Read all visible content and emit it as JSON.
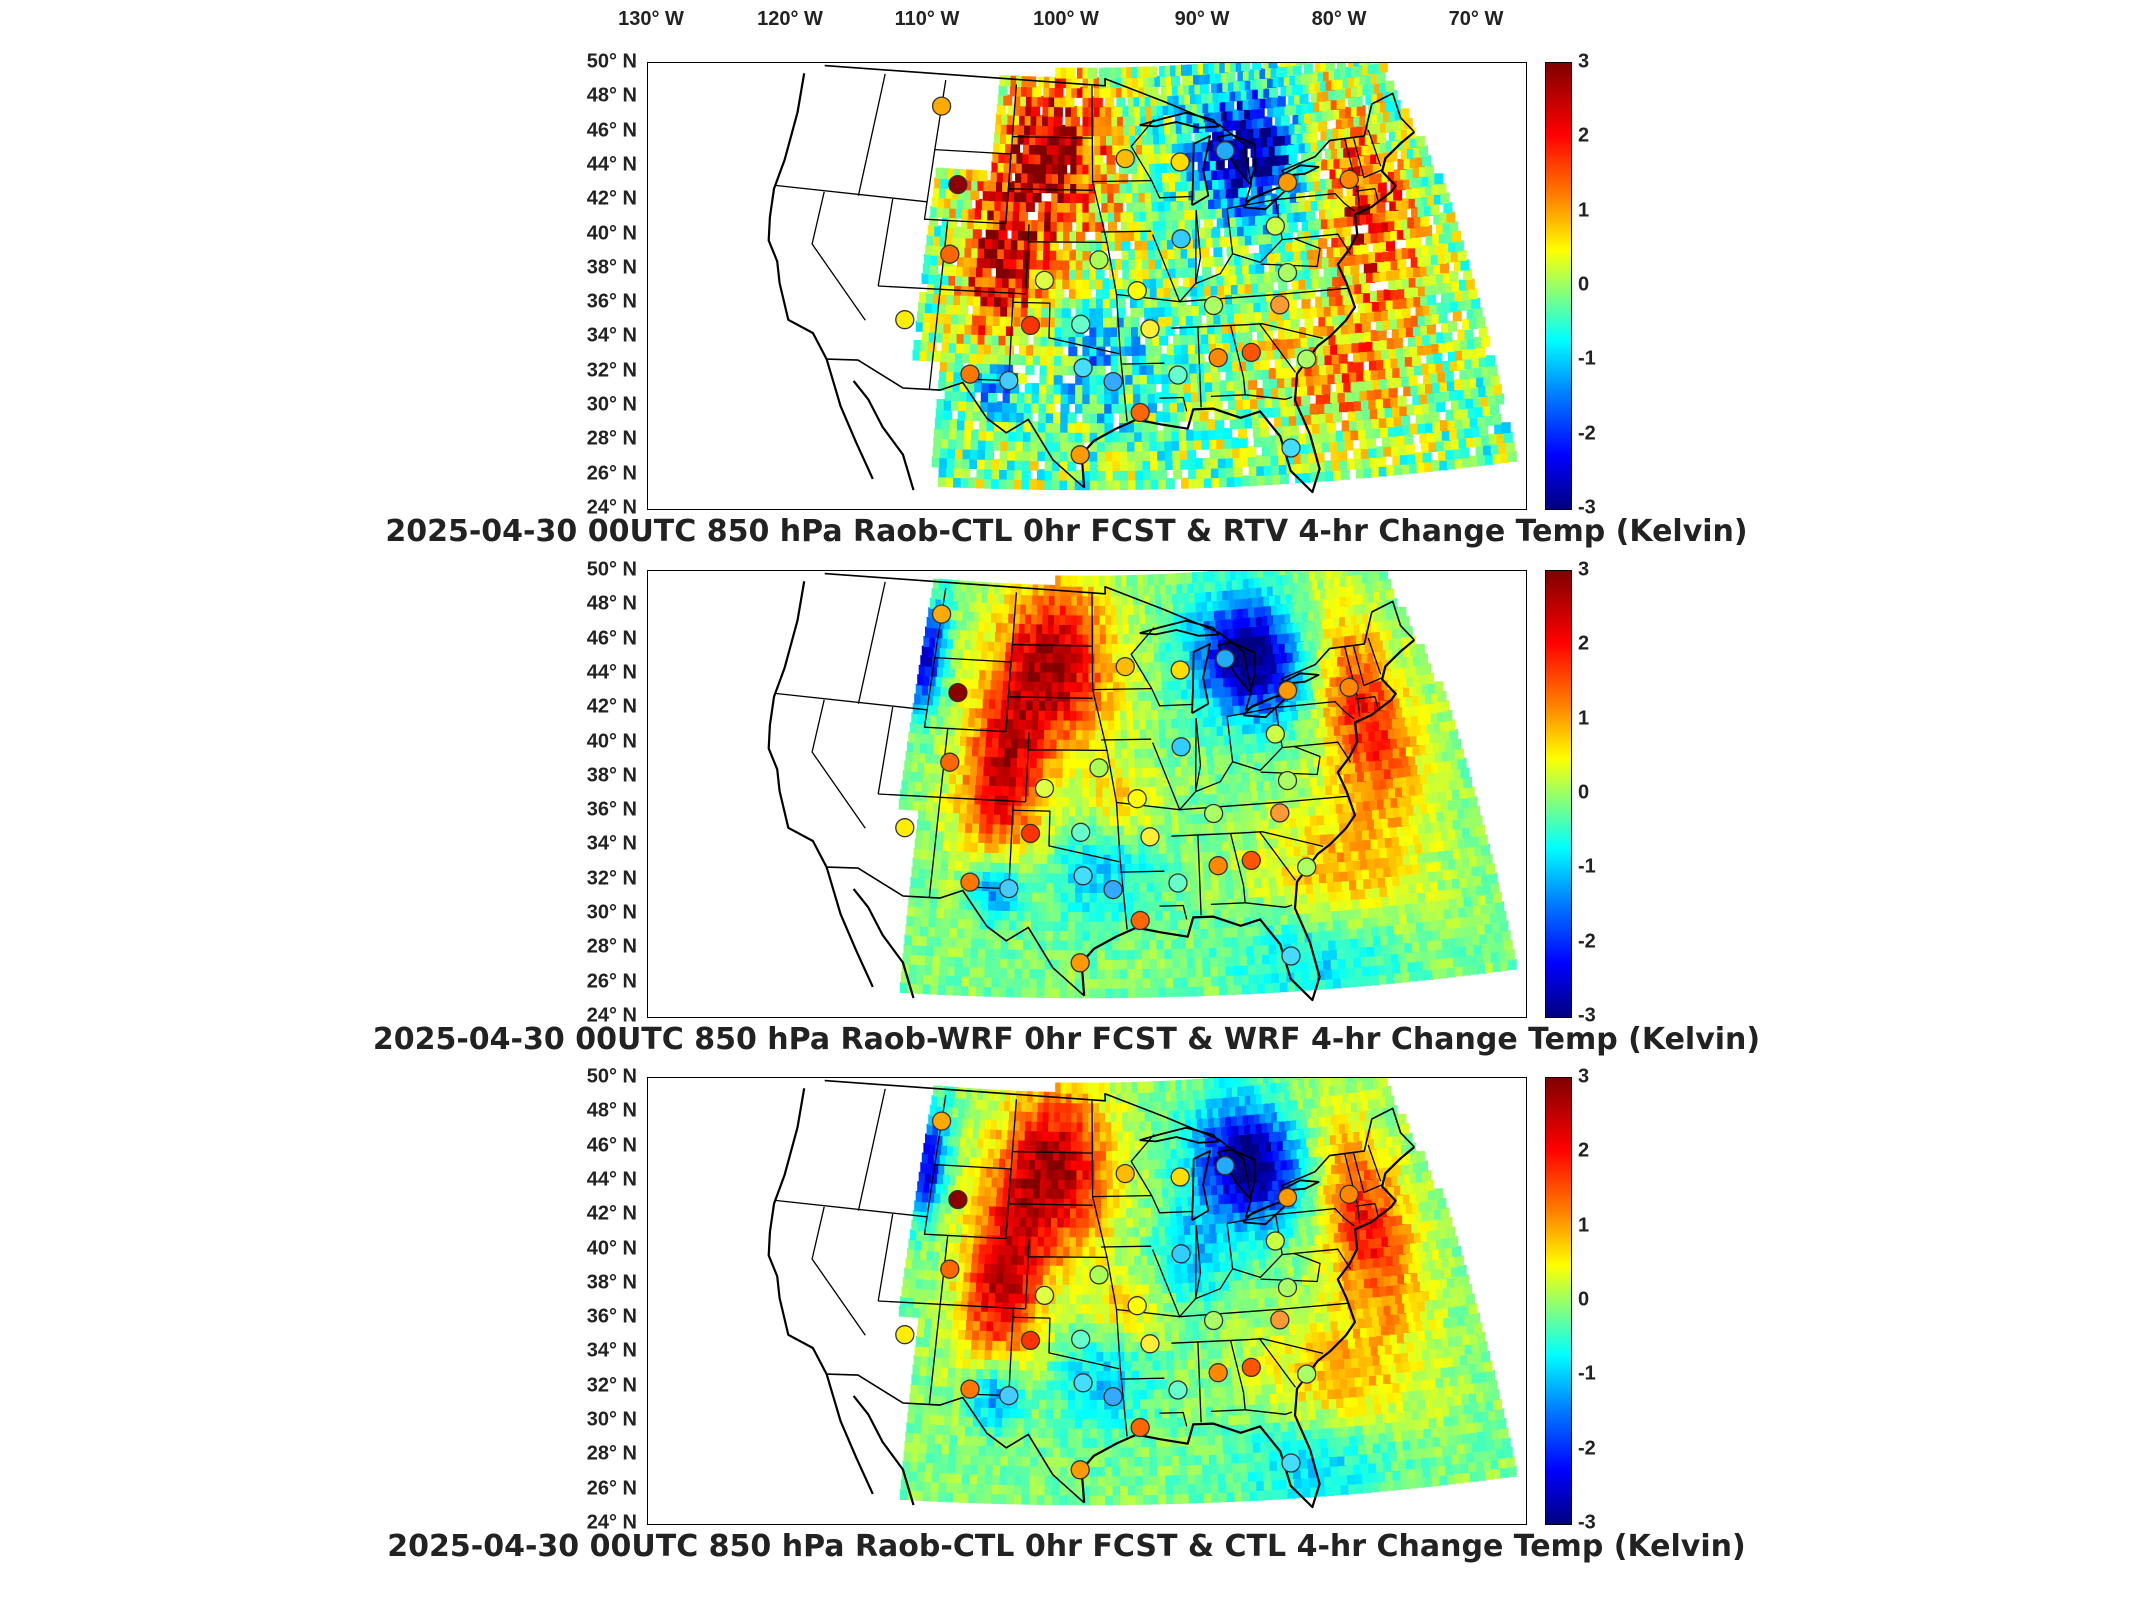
{
  "lon_labels": [
    "130° W",
    "120° W",
    "110° W",
    "100° W",
    "90° W",
    "80° W",
    "70° W"
  ],
  "lat_labels": [
    "50° N",
    "48° N",
    "46° N",
    "44° N",
    "42° N",
    "40° N",
    "38° N",
    "36° N",
    "34° N",
    "32° N",
    "30° N",
    "28° N",
    "26° N",
    "24° N"
  ],
  "colorbar_ticks": [
    "3",
    "2",
    "1",
    "0",
    "-1",
    "-2",
    "-3"
  ],
  "colormap": [
    "#800000",
    "#ff0000",
    "#ff8000",
    "#ffff00",
    "#80ff80",
    "#00ffff",
    "#0080ff",
    "#0000ff",
    "#000080"
  ],
  "panels": [
    {
      "title": "2025-04-30 00UTC 850 hPa Raob-CTL 0hr FCST & RTV 4-hr Change Temp (Kelvin)",
      "variant": "rtv"
    },
    {
      "title": "2025-04-30 00UTC 850 hPa Raob-WRF 0hr FCST & WRF 4-hr Change Temp (Kelvin)",
      "variant": "wrf"
    },
    {
      "title": "2025-04-30 00UTC 850 hPa Raob-CTL 0hr FCST & CTL 4-hr Change Temp (Kelvin)",
      "variant": "ctl"
    }
  ],
  "raob_stations": [
    {
      "lon": -111.0,
      "lat": 47.5,
      "color": "#ffaa00"
    },
    {
      "lon": -108.5,
      "lat": 43.1,
      "color": "#8b0000"
    },
    {
      "lon": -108.5,
      "lat": 39.1,
      "color": "#ff6600"
    },
    {
      "lon": -111.5,
      "lat": 35.2,
      "color": "#ffee00"
    },
    {
      "lon": -106.0,
      "lat": 32.3,
      "color": "#ff7700"
    },
    {
      "lon": -101.5,
      "lat": 35.2,
      "color": "#ff3300"
    },
    {
      "lon": -103.0,
      "lat": 32.0,
      "color": "#44ccff"
    },
    {
      "lon": -100.5,
      "lat": 37.8,
      "color": "#ddff44"
    },
    {
      "lon": -97.5,
      "lat": 35.3,
      "color": "#66ffcc"
    },
    {
      "lon": -97.3,
      "lat": 32.8,
      "color": "#44ddff"
    },
    {
      "lon": -96.0,
      "lat": 39.0,
      "color": "#aaff55"
    },
    {
      "lon": -93.5,
      "lat": 44.8,
      "color": "#ffbb00"
    },
    {
      "lon": -92.9,
      "lat": 37.2,
      "color": "#ffff00"
    },
    {
      "lon": -92.0,
      "lat": 35.0,
      "color": "#ffee33"
    },
    {
      "lon": -95.0,
      "lat": 32.0,
      "color": "#33aaff"
    },
    {
      "lon": -93.0,
      "lat": 30.2,
      "color": "#ff6600"
    },
    {
      "lon": -97.5,
      "lat": 27.8,
      "color": "#ff9900"
    },
    {
      "lon": -89.0,
      "lat": 40.1,
      "color": "#33ccff"
    },
    {
      "lon": -88.5,
      "lat": 44.5,
      "color": "#ffdd00"
    },
    {
      "lon": -84.3,
      "lat": 45.0,
      "color": "#22aaff"
    },
    {
      "lon": -90.0,
      "lat": 32.3,
      "color": "#66ffcc"
    },
    {
      "lon": -86.8,
      "lat": 36.2,
      "color": "#aaff66"
    },
    {
      "lon": -86.8,
      "lat": 33.2,
      "color": "#ff8800"
    },
    {
      "lon": -84.2,
      "lat": 33.4,
      "color": "#ff5500"
    },
    {
      "lon": -80.9,
      "lat": 40.5,
      "color": "#ccff44"
    },
    {
      "lon": -79.2,
      "lat": 42.9,
      "color": "#ff9900"
    },
    {
      "lon": -73.8,
      "lat": 42.7,
      "color": "#ff8800"
    },
    {
      "lon": -81.5,
      "lat": 36.0,
      "color": "#ff9933"
    },
    {
      "lon": -80.0,
      "lat": 32.8,
      "color": "#aaff66"
    },
    {
      "lon": -82.0,
      "lat": 27.8,
      "color": "#44ddff"
    },
    {
      "lon": -80.5,
      "lat": 37.8,
      "color": "#aaff66"
    }
  ]
}
